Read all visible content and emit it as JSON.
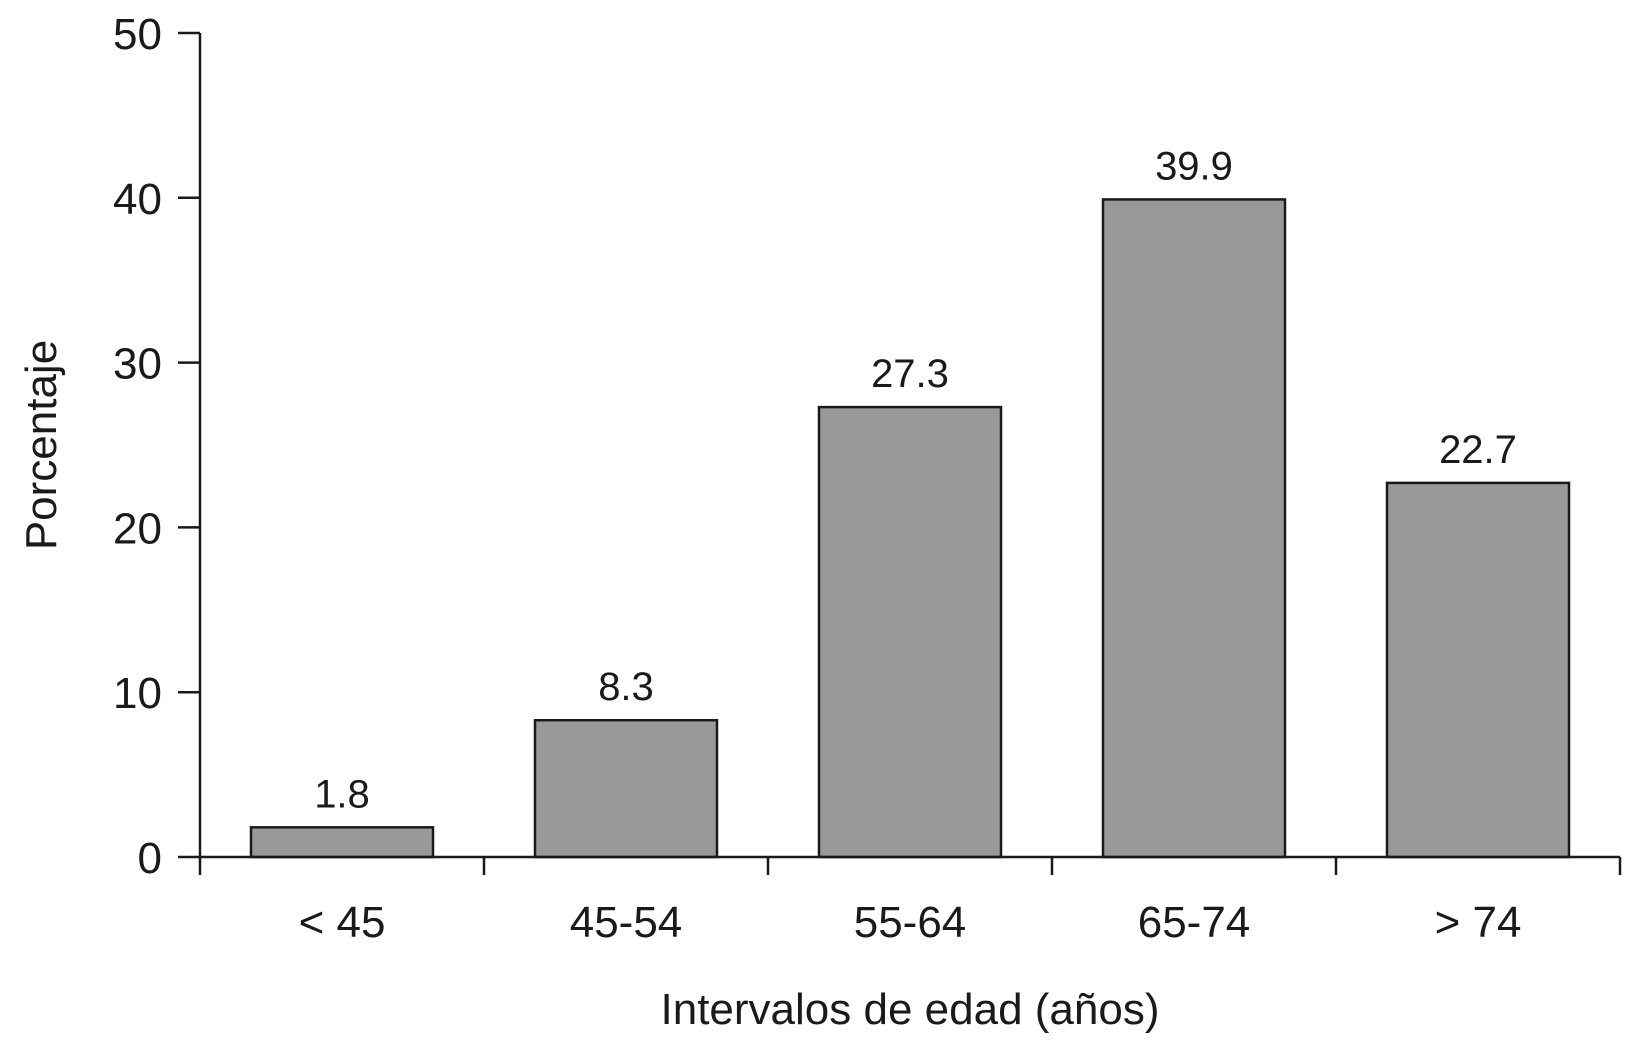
{
  "chart_data": {
    "type": "bar",
    "categories": [
      "< 45",
      "45-54",
      "55-64",
      "65-74",
      "> 74"
    ],
    "values": [
      1.8,
      8.3,
      27.3,
      39.9,
      22.7
    ],
    "data_labels": [
      "1.8",
      "8.3",
      "27.3",
      "39.9",
      "22.7"
    ],
    "title": "",
    "xlabel": "Intervalos de edad (años)",
    "ylabel": "Porcentaje",
    "ylim": [
      0,
      50
    ],
    "yticks": [
      0,
      10,
      20,
      30,
      40,
      50
    ],
    "grid": false,
    "legend": "none",
    "colors": {
      "bar": "#999999",
      "outline": "#1a1a1a"
    }
  }
}
